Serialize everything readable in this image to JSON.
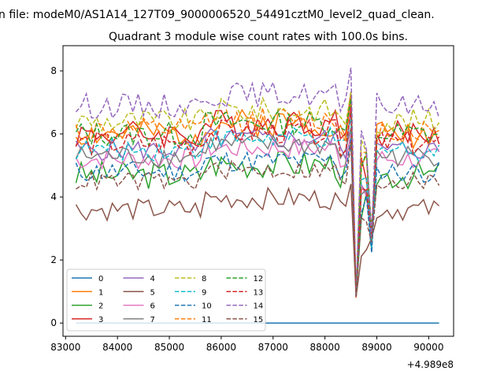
{
  "figure": {
    "suptitle": "n file: modeM0/AS1A14_127T09_9000006520_54491cztM0_level2_quad_clean.",
    "title": "Quadrant 3 module wise count rates with 100.0s bins.",
    "offset_label": "+4.989e8"
  },
  "chart_data": {
    "type": "line",
    "title": "Quadrant 3 module wise count rates with 100.0s bins.",
    "xlabel": "",
    "ylabel": "",
    "x_offset": 498900000,
    "x_start": 83200,
    "x_step": 100,
    "x_end": 90200,
    "xlim": [
      82950,
      90480
    ],
    "ylim": [
      -0.42,
      8.8
    ],
    "x_ticks": [
      83000,
      84000,
      85000,
      86000,
      87000,
      88000,
      89000,
      90000
    ],
    "x_tick_labels": [
      "83000",
      "84000",
      "85000",
      "86000",
      "87000",
      "88000",
      "89000",
      "90000"
    ],
    "y_ticks": [
      0,
      2,
      4,
      6,
      8
    ],
    "y_tick_labels": [
      "0",
      "2",
      "4",
      "6",
      "8"
    ],
    "dip_x": 88600,
    "dip_min": 0.8,
    "grid": false,
    "legend_position": "lower-left",
    "legend_columns": 4,
    "series": [
      {
        "name": "0",
        "color": "#1f77b4",
        "dash": "solid",
        "base": 0.0,
        "amp": 0.0,
        "seed": 1
      },
      {
        "name": "1",
        "color": "#ff7f0e",
        "dash": "solid",
        "base": 6.0,
        "amp": 0.45,
        "seed": 2
      },
      {
        "name": "2",
        "color": "#2ca02c",
        "dash": "solid",
        "base": 4.7,
        "amp": 0.45,
        "seed": 3
      },
      {
        "name": "3",
        "color": "#d62728",
        "dash": "solid",
        "base": 6.0,
        "amp": 0.45,
        "seed": 4
      },
      {
        "name": "4",
        "color": "#9467bd",
        "dash": "solid",
        "base": 5.5,
        "amp": 0.35,
        "seed": 5
      },
      {
        "name": "5",
        "color": "#8c564b",
        "dash": "solid",
        "base": 3.6,
        "amp": 0.35,
        "seed": 6
      },
      {
        "name": "6",
        "color": "#e377c2",
        "dash": "solid",
        "base": 5.2,
        "amp": 0.35,
        "seed": 7
      },
      {
        "name": "7",
        "color": "#7f7f7f",
        "dash": "solid",
        "base": 5.3,
        "amp": 0.35,
        "seed": 8
      },
      {
        "name": "8",
        "color": "#bcbd22",
        "dash": "dashed",
        "base": 6.4,
        "amp": 0.4,
        "seed": 9
      },
      {
        "name": "9",
        "color": "#17becf",
        "dash": "dashed",
        "base": 5.5,
        "amp": 0.35,
        "seed": 10
      },
      {
        "name": "10",
        "color": "#1f77b4",
        "dash": "dashed",
        "base": 4.8,
        "amp": 0.35,
        "seed": 11
      },
      {
        "name": "11",
        "color": "#ff7f0e",
        "dash": "dashed",
        "base": 6.1,
        "amp": 0.4,
        "seed": 12
      },
      {
        "name": "12",
        "color": "#2ca02c",
        "dash": "dashed",
        "base": 6.0,
        "amp": 0.4,
        "seed": 13
      },
      {
        "name": "13",
        "color": "#d62728",
        "dash": "dashed",
        "base": 5.7,
        "amp": 0.4,
        "seed": 14
      },
      {
        "name": "14",
        "color": "#9467bd",
        "dash": "dashed",
        "base": 6.9,
        "amp": 0.4,
        "seed": 15
      },
      {
        "name": "15",
        "color": "#8c564b",
        "dash": "dashed",
        "base": 4.5,
        "amp": 0.3,
        "seed": 16
      }
    ]
  }
}
